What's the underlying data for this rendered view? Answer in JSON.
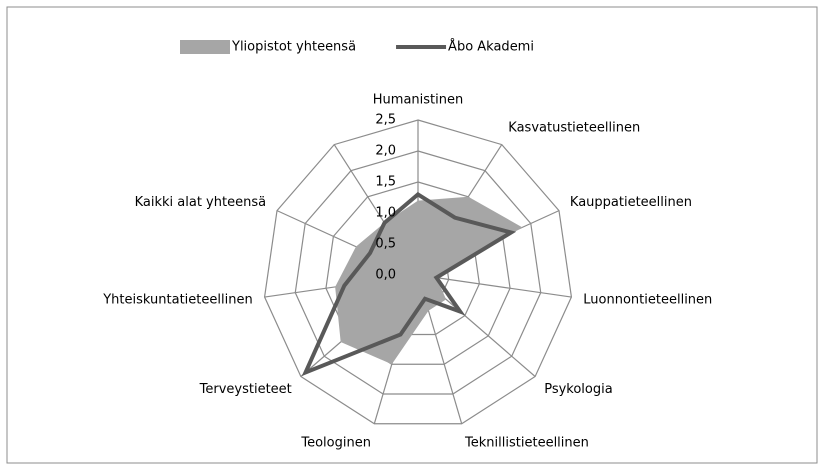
{
  "chart_data": {
    "type": "radar",
    "categories": [
      "Humanistinen",
      "Kasvatustieteellinen",
      "Kauppatieteellinen",
      "Luonnontieteellinen",
      "Psykologia",
      "Teknillistieteellinen",
      "Teologinen",
      "Terveystieteet",
      "Yhteiskuntatieteellinen",
      "Kaikki alat yhteensä",
      null
    ],
    "series": [
      {
        "name": "Yliopistot yhteensä",
        "color": "#a6a6a6",
        "fill": true,
        "values": [
          1.2,
          1.5,
          1.85,
          0.3,
          0.6,
          0.6,
          1.5,
          1.65,
          1.35,
          1.1,
          1.0
        ]
      },
      {
        "name": "Åbo Akademi",
        "color": "#595959",
        "fill": false,
        "values": [
          1.3,
          1.1,
          1.65,
          0.3,
          0.9,
          0.4,
          1.0,
          2.4,
          1.2,
          0.85,
          1.0
        ]
      }
    ],
    "ylim": [
      0,
      2.5
    ],
    "yticks": [
      {
        "value": 0,
        "label": "0,0"
      },
      {
        "value": 0.5,
        "label": "0,5"
      },
      {
        "value": 1,
        "label": "1,0"
      },
      {
        "value": 1.5,
        "label": "1,5"
      },
      {
        "value": 2,
        "label": "2,0"
      },
      {
        "value": 2.5,
        "label": "2,5"
      }
    ],
    "grid": true,
    "legend": "top"
  }
}
